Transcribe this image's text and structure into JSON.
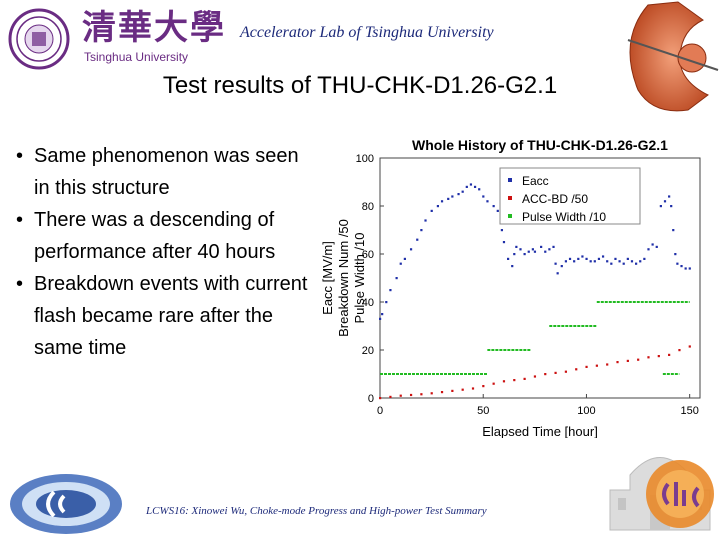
{
  "header": {
    "logo_chinese": "清華大學",
    "logo_english": "Tsinghua University",
    "lab_name": "Accelerator Lab of Tsinghua University"
  },
  "slide": {
    "title": "Test results of THU-CHK-D1.26-G2.1",
    "bullets": [
      "Same phenomenon was seen in this structure",
      "There was a descending of performance after 40 hours",
      "Breakdown events with current flash became rare after the same time"
    ],
    "footer": "LCWS16: Xinowei Wu, Choke-mode Progress and High-power Test Summary"
  },
  "colors": {
    "accent_purple": "#6a2c83",
    "footer_blue": "#1d2a7a",
    "eacc": "#1f2fa8",
    "acc_bd": "#cc1111",
    "pulse_width": "#22bb22"
  },
  "icons": [
    "tsinghua-seal-icon",
    "cavity-render-icon",
    "campus-building-icon",
    "clic-logo-icon",
    "lab-logo-icon"
  ],
  "chart_data": {
    "type": "scatter",
    "title": "Whole History of THU-CHK-D1.26-G2.1",
    "xlabel": "Elapsed Time [hour]",
    "ylabel_lines": [
      "Eacc [MV/m]",
      "Breakdown Num /50",
      "Pulse Width /10"
    ],
    "xlim": [
      0,
      155
    ],
    "ylim": [
      0,
      100
    ],
    "xticks": [
      "0",
      "50",
      "100",
      "150"
    ],
    "yticks": [
      "0",
      "20",
      "40",
      "60",
      "80",
      "100"
    ],
    "legend_position": "top-right",
    "series": [
      {
        "name": "Eacc",
        "color": "#1f2fa8",
        "points": [
          [
            0,
            33
          ],
          [
            1,
            35
          ],
          [
            3,
            40
          ],
          [
            5,
            45
          ],
          [
            8,
            50
          ],
          [
            10,
            56
          ],
          [
            12,
            58
          ],
          [
            15,
            62
          ],
          [
            18,
            66
          ],
          [
            20,
            70
          ],
          [
            22,
            74
          ],
          [
            25,
            78
          ],
          [
            28,
            80
          ],
          [
            30,
            82
          ],
          [
            33,
            83
          ],
          [
            35,
            84
          ],
          [
            38,
            85
          ],
          [
            40,
            86
          ],
          [
            42,
            88
          ],
          [
            44,
            89
          ],
          [
            46,
            88
          ],
          [
            48,
            87
          ],
          [
            50,
            84
          ],
          [
            52,
            82
          ],
          [
            55,
            80
          ],
          [
            57,
            78
          ],
          [
            59,
            70
          ],
          [
            60,
            65
          ],
          [
            62,
            58
          ],
          [
            64,
            55
          ],
          [
            65,
            60
          ],
          [
            66,
            63
          ],
          [
            68,
            62
          ],
          [
            70,
            60
          ],
          [
            72,
            61
          ],
          [
            74,
            62
          ],
          [
            75,
            61
          ],
          [
            78,
            63
          ],
          [
            80,
            61
          ],
          [
            82,
            62
          ],
          [
            84,
            63
          ],
          [
            85,
            56
          ],
          [
            86,
            52
          ],
          [
            88,
            55
          ],
          [
            90,
            57
          ],
          [
            92,
            58
          ],
          [
            94,
            57
          ],
          [
            96,
            58
          ],
          [
            98,
            59
          ],
          [
            100,
            58
          ],
          [
            102,
            57
          ],
          [
            104,
            57
          ],
          [
            106,
            58
          ],
          [
            108,
            59
          ],
          [
            110,
            57
          ],
          [
            112,
            56
          ],
          [
            114,
            58
          ],
          [
            116,
            57
          ],
          [
            118,
            56
          ],
          [
            120,
            58
          ],
          [
            122,
            57
          ],
          [
            124,
            56
          ],
          [
            126,
            57
          ],
          [
            128,
            58
          ],
          [
            130,
            62
          ],
          [
            132,
            64
          ],
          [
            134,
            63
          ],
          [
            136,
            80
          ],
          [
            138,
            82
          ],
          [
            140,
            84
          ],
          [
            141,
            80
          ],
          [
            142,
            70
          ],
          [
            143,
            60
          ],
          [
            144,
            56
          ],
          [
            146,
            55
          ],
          [
            148,
            54
          ],
          [
            150,
            54
          ]
        ]
      },
      {
        "name": "ACC-BD /50",
        "color": "#cc1111",
        "points": [
          [
            0,
            0
          ],
          [
            5,
            0.5
          ],
          [
            10,
            1
          ],
          [
            15,
            1.3
          ],
          [
            20,
            1.6
          ],
          [
            25,
            2
          ],
          [
            30,
            2.5
          ],
          [
            35,
            3
          ],
          [
            40,
            3.5
          ],
          [
            45,
            4
          ],
          [
            50,
            5
          ],
          [
            55,
            6
          ],
          [
            60,
            7
          ],
          [
            65,
            7.5
          ],
          [
            70,
            8
          ],
          [
            75,
            9
          ],
          [
            80,
            10
          ],
          [
            85,
            10.5
          ],
          [
            90,
            11
          ],
          [
            95,
            12
          ],
          [
            100,
            13
          ],
          [
            105,
            13.5
          ],
          [
            110,
            14
          ],
          [
            115,
            15
          ],
          [
            120,
            15.5
          ],
          [
            125,
            16
          ],
          [
            130,
            17
          ],
          [
            135,
            17.5
          ],
          [
            140,
            18
          ],
          [
            145,
            20
          ],
          [
            150,
            21.5
          ]
        ]
      },
      {
        "name": "Pulse Width /10",
        "color": "#22bb22",
        "segments": [
          [
            0,
            52,
            10
          ],
          [
            52,
            73,
            20
          ],
          [
            82,
            105,
            30
          ],
          [
            105,
            150,
            40
          ],
          [
            137,
            145,
            10
          ]
        ]
      }
    ]
  }
}
